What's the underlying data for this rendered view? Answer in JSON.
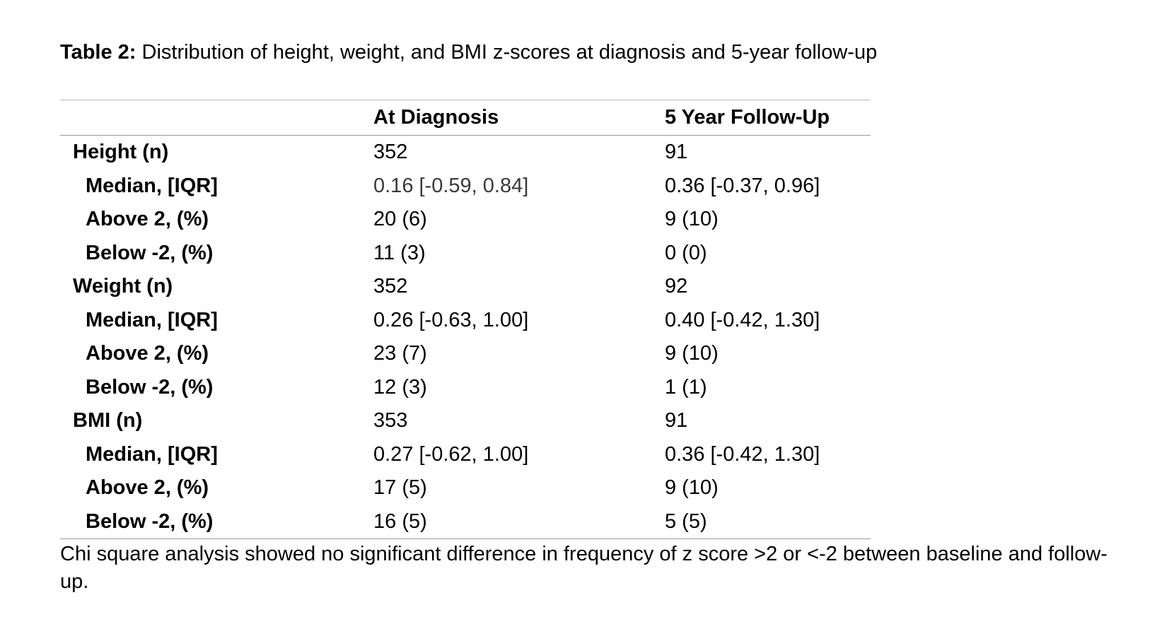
{
  "caption": {
    "label": "Table 2:",
    "text": "Distribution of height, weight, and BMI z-scores at diagnosis and 5-year follow-up"
  },
  "table": {
    "headers": [
      "",
      "At Diagnosis",
      "5 Year Follow-Up"
    ],
    "rows": [
      {
        "label": "Height (n)",
        "level": "group",
        "diagnosis": "352",
        "followup": "91"
      },
      {
        "label": "Median, [IQR]",
        "level": "sub",
        "diagnosis": "0.16 [-0.59, 0.84]",
        "followup": "0.36 [-0.37, 0.96]"
      },
      {
        "label": "Above 2, (%)",
        "level": "sub",
        "diagnosis": "20 (6)",
        "followup": "9 (10)"
      },
      {
        "label": "Below -2, (%)",
        "level": "sub",
        "diagnosis": "11 (3)",
        "followup": "0 (0)"
      },
      {
        "label": "Weight (n)",
        "level": "group",
        "diagnosis": "352",
        "followup": "92"
      },
      {
        "label": "Median, [IQR]",
        "level": "sub",
        "diagnosis": "0.26 [-0.63, 1.00]",
        "followup": "0.40 [-0.42, 1.30]"
      },
      {
        "label": "Above 2, (%)",
        "level": "sub",
        "diagnosis": "23 (7)",
        "followup": "9 (10)"
      },
      {
        "label": "Below -2, (%)",
        "level": "sub",
        "diagnosis": "12 (3)",
        "followup": "1 (1)"
      },
      {
        "label": "BMI (n)",
        "level": "group",
        "diagnosis": "353",
        "followup": "91"
      },
      {
        "label": "Median, [IQR]",
        "level": "sub",
        "diagnosis": "0.27 [-0.62, 1.00]",
        "followup": "0.36 [-0.42, 1.30]"
      },
      {
        "label": "Above 2, (%)",
        "level": "sub",
        "diagnosis": "17 (5)",
        "followup": "9 (10)"
      },
      {
        "label": "Below -2, (%)",
        "level": "sub",
        "diagnosis": "16 (5)",
        "followup": "5 (5)"
      }
    ]
  },
  "footnote": "Chi square analysis showed no significant difference in frequency of z score >2 or <-2 between baseline and follow-up."
}
